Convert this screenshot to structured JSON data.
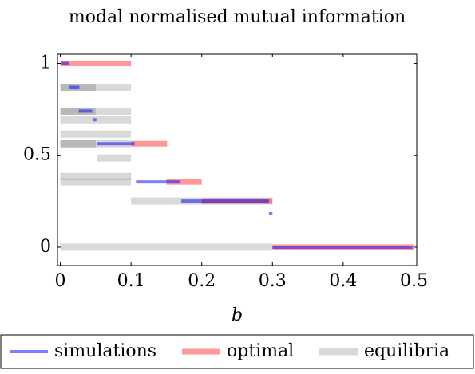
{
  "chart_data": {
    "type": "segments",
    "title": "modal normalised mutual information",
    "xlabel": "b",
    "xlim": [
      -0.004,
      0.504
    ],
    "ylim": [
      -0.1,
      1.05
    ],
    "xticks": [
      0,
      0.1,
      0.2,
      0.3,
      0.4,
      0.5
    ],
    "yticks": [
      0,
      0.5,
      1
    ],
    "series": [
      {
        "name": "simulations",
        "color": "#0000ff80",
        "segments": [
          [
            0.002,
            0.012,
            1
          ],
          [
            0.012,
            0.027,
            0.87
          ],
          [
            0.026,
            0.045,
            0.74
          ],
          [
            0.046,
            0.051,
            0.693
          ],
          [
            0.052,
            0.105,
            0.563
          ],
          [
            0.107,
            0.17,
            0.355
          ],
          [
            0.171,
            0.295,
            0.251
          ],
          [
            0.295,
            0.3,
            0.182
          ],
          [
            0.3,
            0.498,
            0
          ]
        ]
      },
      {
        "name": "optimal",
        "color": "#ff000066",
        "segments": [
          [
            0,
            0.1,
            1
          ],
          [
            0.1,
            0.151,
            0.563
          ],
          [
            0.15,
            0.2,
            0.355
          ],
          [
            0.2,
            0.3,
            0.251
          ],
          [
            0.3,
            0.5,
            0
          ]
        ]
      },
      {
        "name": "equilibria",
        "color": "#00000026",
        "segments": [
          [
            0,
            0.1,
            0.87
          ],
          [
            0,
            0.05,
            0.87
          ],
          [
            0,
            0.1,
            0.74
          ],
          [
            0,
            0.05,
            0.74
          ],
          [
            0,
            0.1,
            0.693
          ],
          [
            0,
            0.1,
            0.615
          ],
          [
            0,
            0.1,
            0.563
          ],
          [
            0,
            0.05,
            0.563
          ],
          [
            0.052,
            0.1,
            0.485
          ],
          [
            0,
            0.1,
            0.385
          ],
          [
            0,
            0.1,
            0.355
          ],
          [
            0.1,
            0.3,
            0.251
          ],
          [
            0,
            0.3,
            0
          ]
        ]
      }
    ]
  }
}
